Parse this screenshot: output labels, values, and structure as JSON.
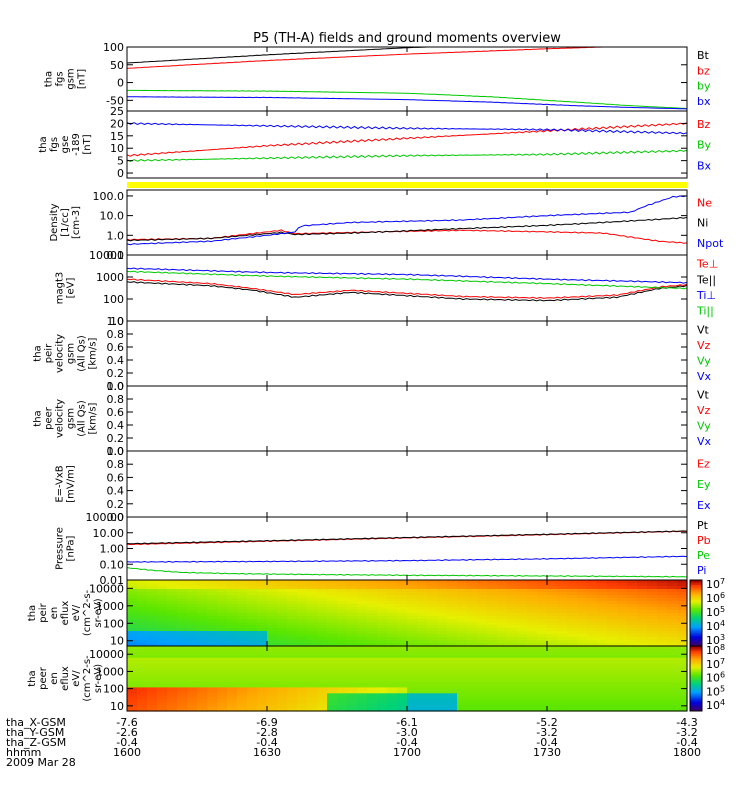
{
  "title": "P5 (TH-A) fields and ground moments overview",
  "colors": {
    "black": "#000000",
    "red": "#ff0000",
    "green": "#00c800",
    "blue": "#0000ff",
    "yellow": "#ffff00"
  },
  "chart_data": [
    {
      "id": "fgs_gsm",
      "type": "line",
      "ylabel": [
        "tha",
        "fgs",
        "gsm",
        "[nT]"
      ],
      "ylim": [
        -80,
        100
      ],
      "yticks": [
        100,
        50,
        0,
        -50
      ],
      "legend": [
        {
          "name": "Bt",
          "color": "#000000"
        },
        {
          "name": "bz",
          "color": "#ff0000"
        },
        {
          "name": "by",
          "color": "#00c800"
        },
        {
          "name": "bx",
          "color": "#0000ff"
        }
      ],
      "x_hours": [
        0,
        2
      ],
      "series": [
        {
          "name": "Bt",
          "color": "#000000",
          "x": [
            0,
            0.5,
            1,
            1.5,
            2
          ],
          "y": [
            55,
            78,
            98,
            112,
            125
          ]
        },
        {
          "name": "bz",
          "color": "#ff0000",
          "x": [
            0,
            0.5,
            1,
            1.5,
            2
          ],
          "y": [
            40,
            62,
            80,
            95,
            108
          ]
        },
        {
          "name": "by",
          "color": "#00c800",
          "x": [
            0,
            0.5,
            1,
            1.3,
            1.6,
            1.8,
            2
          ],
          "y": [
            -22,
            -24,
            -30,
            -40,
            -55,
            -65,
            -73
          ]
        },
        {
          "name": "bx",
          "color": "#0000ff",
          "x": [
            0,
            0.5,
            1,
            1.3,
            1.6,
            1.8,
            2
          ],
          "y": [
            -40,
            -42,
            -48,
            -55,
            -65,
            -70,
            -74
          ]
        }
      ]
    },
    {
      "id": "fgs_gse",
      "type": "line",
      "ylabel": [
        "tha",
        "fgs",
        "gse",
        "-189",
        "[nT]"
      ],
      "ylim": [
        -2,
        25
      ],
      "yticks": [
        25,
        20,
        15,
        10,
        5,
        0
      ],
      "legend": [
        {
          "name": "Bz",
          "color": "#ff0000"
        },
        {
          "name": "By",
          "color": "#00c800"
        },
        {
          "name": "Bx",
          "color": "#0000ff"
        }
      ],
      "x_hours": [
        0,
        2
      ],
      "series": [
        {
          "name": "Bz",
          "color": "#ff0000",
          "x": [
            0,
            0.5,
            1,
            1.5,
            2
          ],
          "y": [
            7,
            11,
            14,
            17,
            20
          ]
        },
        {
          "name": "By",
          "color": "#00c800",
          "x": [
            0,
            0.5,
            1,
            1.5,
            2
          ],
          "y": [
            5,
            6,
            7,
            7.5,
            9
          ]
        },
        {
          "name": "Bx",
          "color": "#0000ff",
          "x": [
            0,
            0.5,
            1,
            1.5,
            2
          ],
          "y": [
            20,
            19,
            18,
            17.5,
            16
          ]
        }
      ]
    },
    {
      "id": "density",
      "type": "line",
      "scale": "log",
      "ylabel": [
        "Density",
        "[1/cc]",
        "[cm-3]"
      ],
      "ylim": [
        0.1,
        200
      ],
      "yticks": [
        100.0,
        10.0,
        1.0,
        0.1
      ],
      "yticklabels": [
        "100.0",
        "10.0",
        "1.0",
        "0.1"
      ],
      "legend": [
        {
          "name": "Ne",
          "color": "#ff0000"
        },
        {
          "name": "Ni",
          "color": "#000000"
        },
        {
          "name": "Npot",
          "color": "#0000ff"
        }
      ],
      "x_hours": [
        0,
        2
      ],
      "series": [
        {
          "name": "Ne",
          "color": "#ff0000",
          "x": [
            0,
            0.3,
            0.55,
            0.6,
            0.8,
            1.2,
            1.5,
            1.7,
            1.9,
            2
          ],
          "y": [
            0.6,
            0.7,
            1.8,
            1.2,
            1.4,
            1.8,
            1.5,
            1.3,
            0.5,
            0.4
          ]
        },
        {
          "name": "Ni",
          "color": "#000000",
          "x": [
            0,
            0.3,
            0.55,
            0.6,
            0.8,
            1.2,
            1.5,
            1.7,
            1.9,
            2
          ],
          "y": [
            0.55,
            0.7,
            1.4,
            1.1,
            1.3,
            2.2,
            3.2,
            4.5,
            6.5,
            8
          ]
        },
        {
          "name": "Npot",
          "color": "#0000ff",
          "x": [
            0,
            0.3,
            0.55,
            0.6,
            0.62,
            0.8,
            1.2,
            1.5,
            1.8,
            1.85,
            1.95,
            2
          ],
          "y": [
            0.35,
            0.5,
            1.2,
            1.5,
            3,
            4.5,
            6,
            10,
            15,
            30,
            90,
            100
          ]
        }
      ]
    },
    {
      "id": "temperature",
      "type": "line",
      "scale": "log",
      "ylabel": [
        "magt3",
        "[eV]"
      ],
      "ylim": [
        10,
        10000
      ],
      "yticks": [
        10000,
        1000,
        100,
        10
      ],
      "yticklabels": [
        "10000",
        "1000",
        "100",
        "10"
      ],
      "legend": [
        {
          "name": "Te⊥",
          "color": "#ff0000"
        },
        {
          "name": "Te||",
          "color": "#000000"
        },
        {
          "name": "Ti⊥",
          "color": "#0000ff"
        },
        {
          "name": "Ti||",
          "color": "#00c800"
        }
      ],
      "x_hours": [
        0,
        2
      ],
      "series": [
        {
          "name": "Te⊥",
          "color": "#ff0000",
          "x": [
            0,
            0.3,
            0.45,
            0.6,
            0.8,
            1.2,
            1.5,
            1.75,
            1.9,
            2
          ],
          "y": [
            800,
            500,
            300,
            160,
            250,
            130,
            110,
            150,
            350,
            450
          ]
        },
        {
          "name": "Te||",
          "color": "#000000",
          "x": [
            0,
            0.3,
            0.45,
            0.6,
            0.8,
            1.2,
            1.5,
            1.75,
            1.9,
            2
          ],
          "y": [
            600,
            400,
            250,
            120,
            200,
            100,
            85,
            120,
            300,
            400
          ]
        },
        {
          "name": "Ti⊥",
          "color": "#0000ff",
          "x": [
            0,
            0.5,
            1,
            1.5,
            2
          ],
          "y": [
            2500,
            1600,
            1300,
            800,
            550
          ]
        },
        {
          "name": "Ti||",
          "color": "#00c800",
          "x": [
            0,
            0.5,
            1,
            1.5,
            2
          ],
          "y": [
            1800,
            1100,
            800,
            500,
            300
          ]
        }
      ]
    },
    {
      "id": "peir_velocity",
      "type": "line",
      "ylabel": [
        "tha",
        "peir",
        "velocity",
        "gsm",
        "(All Qs)",
        "[km/s]"
      ],
      "ylim": [
        0,
        1
      ],
      "yticks": [
        1.0,
        0.8,
        0.6,
        0.4,
        0.2,
        0.0
      ],
      "yticklabels": [
        "1.0",
        "0.8",
        "0.6",
        "0.4",
        "0.2",
        "0.0"
      ],
      "legend": [
        {
          "name": "Vt",
          "color": "#000000"
        },
        {
          "name": "Vz",
          "color": "#ff0000"
        },
        {
          "name": "Vy",
          "color": "#00c800"
        },
        {
          "name": "Vx",
          "color": "#0000ff"
        }
      ],
      "series": []
    },
    {
      "id": "peer_velocity",
      "type": "line",
      "ylabel": [
        "tha",
        "peer",
        "velocity",
        "gsm",
        "(All Qs)",
        "[km/s]"
      ],
      "ylim": [
        0,
        1
      ],
      "yticks": [
        1.0,
        0.8,
        0.6,
        0.4,
        0.2,
        0.0
      ],
      "yticklabels": [
        "1.0",
        "0.8",
        "0.6",
        "0.4",
        "0.2",
        "0.0"
      ],
      "legend": [
        {
          "name": "Vt",
          "color": "#000000"
        },
        {
          "name": "Vz",
          "color": "#ff0000"
        },
        {
          "name": "Vy",
          "color": "#00c800"
        },
        {
          "name": "Vx",
          "color": "#0000ff"
        }
      ],
      "series": []
    },
    {
      "id": "efield",
      "type": "line",
      "ylabel": [
        "E=-VxB",
        "[mV/m]"
      ],
      "ylim": [
        0,
        1
      ],
      "yticks": [
        1.0,
        0.8,
        0.6,
        0.4,
        0.2,
        0.0
      ],
      "yticklabels": [
        "1.0",
        "0.8",
        "0.6",
        "0.4",
        "0.2",
        "0.0"
      ],
      "legend": [
        {
          "name": "Ez",
          "color": "#ff0000"
        },
        {
          "name": "Ey",
          "color": "#00c800"
        },
        {
          "name": "Ex",
          "color": "#0000ff"
        }
      ],
      "series": []
    },
    {
      "id": "pressure",
      "type": "line",
      "scale": "log",
      "ylabel": [
        "Pressure",
        "[nPa]"
      ],
      "ylim": [
        0.01,
        100
      ],
      "yticks": [
        100.0,
        10.0,
        1.0,
        0.1,
        0.01
      ],
      "yticklabels": [
        "100.00",
        "10.00",
        "1.00",
        "0.10",
        "0.01"
      ],
      "legend": [
        {
          "name": "Pt",
          "color": "#000000"
        },
        {
          "name": "Pb",
          "color": "#ff0000"
        },
        {
          "name": "Pe",
          "color": "#00c800"
        },
        {
          "name": "Pi",
          "color": "#0000ff"
        }
      ],
      "x_hours": [
        0,
        2
      ],
      "series": [
        {
          "name": "Pe",
          "color": "#00c800",
          "x": [
            0,
            0.1,
            0.2,
            0.4,
            0.7,
            1,
            1.5,
            2
          ],
          "y": [
            0.06,
            0.04,
            0.03,
            0.025,
            0.022,
            0.02,
            0.018,
            0.016
          ]
        },
        {
          "name": "Pi",
          "color": "#0000ff",
          "x": [
            0,
            0.5,
            1,
            1.5,
            2
          ],
          "y": [
            0.14,
            0.15,
            0.17,
            0.22,
            0.32
          ]
        },
        {
          "name": "Pb",
          "color": "#ff0000",
          "x": [
            0,
            0.5,
            1,
            1.5,
            2
          ],
          "y": [
            1.8,
            2.9,
            4.7,
            7.6,
            12.5
          ]
        },
        {
          "name": "Pt",
          "color": "#000000",
          "x": [
            0,
            0.5,
            1,
            1.5,
            2
          ],
          "y": [
            2.0,
            3.1,
            5.0,
            8.0,
            13.0
          ]
        }
      ]
    },
    {
      "id": "peir_spectrogram",
      "type": "heatmap",
      "scale": "log",
      "ylabel": [
        "tha",
        "peir",
        "en",
        "eflux",
        "eV/",
        "(cm^2-s-",
        "sr-eV)"
      ],
      "ylim": [
        5,
        30000
      ],
      "yticks": [
        10000,
        1000,
        100,
        10
      ],
      "yticklabels": [
        "10000",
        "1000",
        "100",
        "10"
      ],
      "colorbar": {
        "min_exp": 3,
        "max_exp": 7,
        "labels": [
          "10^7",
          "10^6",
          "10^5",
          "10^4",
          "10^3"
        ]
      }
    },
    {
      "id": "peer_spectrogram",
      "type": "heatmap",
      "scale": "log",
      "ylabel": [
        "tha",
        "peer",
        "en",
        "eflux",
        "eV/",
        "(cm^2-s-",
        "sr-eV)"
      ],
      "ylim": [
        5,
        30000
      ],
      "yticks": [
        10000,
        1000,
        100,
        10
      ],
      "yticklabels": [
        "10000",
        "1000",
        "100",
        "10"
      ],
      "colorbar": {
        "min_exp": 4,
        "max_exp": 8,
        "labels": [
          "10^8",
          "10^7",
          "10^6",
          "10^5",
          "10^4"
        ]
      }
    }
  ],
  "ephemeris": {
    "rows": [
      {
        "label": "tha_X-GSM",
        "values": [
          "-7.6",
          "-6.9",
          "-6.1",
          "-5.2",
          "-4.3"
        ]
      },
      {
        "label": "tha_Y-GSM",
        "values": [
          "-2.6",
          "-2.8",
          "-3.0",
          "-3.2",
          "-3.2"
        ]
      },
      {
        "label": "tha_Z-GSM",
        "values": [
          "-0.4",
          "-0.4",
          "-0.4",
          "-0.4",
          "-0.4"
        ]
      },
      {
        "label": "hhmm",
        "values": [
          "1600",
          "1630",
          "1700",
          "1730",
          "1800"
        ]
      }
    ],
    "date": "2009 Mar 28"
  }
}
